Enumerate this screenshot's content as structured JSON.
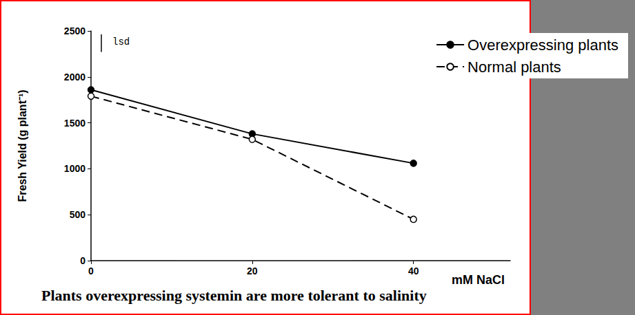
{
  "chart_data": {
    "type": "line",
    "y_label": "Fresh Yield (g plant⁻¹)",
    "x_label": "mM NaCl",
    "caption": "Plants overexpressing systemin are more tolerant to salinity",
    "x": [
      0,
      20,
      40
    ],
    "series": [
      {
        "name": "Overexpressing plants",
        "color": "#000000",
        "marker": "filled_circle",
        "line_style": "solid",
        "values": [
          1860,
          1380,
          1060
        ]
      },
      {
        "name": "Normal plants",
        "color": "#000000",
        "marker": "open_circle",
        "line_style": "dashed",
        "values": [
          1790,
          1320,
          450
        ]
      }
    ],
    "lsd": {
      "label": "lsd",
      "value": 190
    },
    "xlim": [
      0,
      52
    ],
    "xticks": [
      0,
      20,
      40
    ],
    "ylim": [
      0,
      2500
    ],
    "yticks": [
      0,
      500,
      1000,
      1500,
      2000,
      2500
    ],
    "grid": false,
    "legend": "upper right"
  }
}
